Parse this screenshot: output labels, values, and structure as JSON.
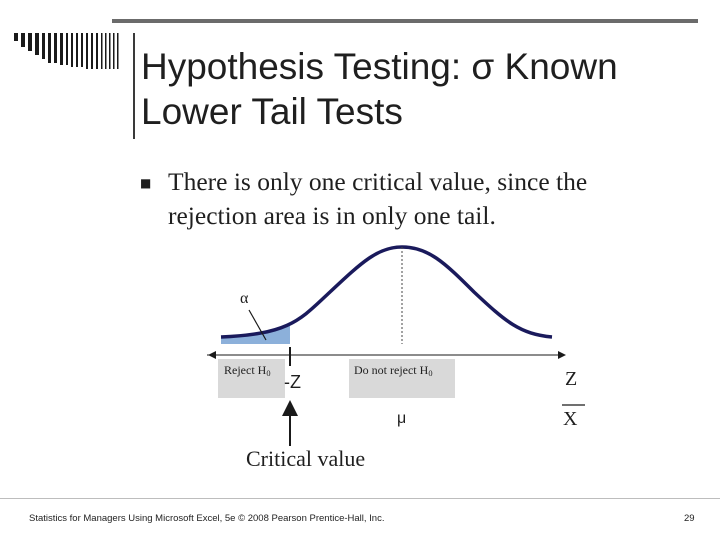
{
  "slide": {
    "title_line1": "Hypothesis Testing: σ Known",
    "title_line2": "Lower Tail Tests",
    "bullet_text": "There is only one critical value, since the rejection area is in only one tail.",
    "footer": "Statistics for Managers Using Microsoft Excel, 5e © 2008 Pearson Prentice-Hall, Inc.",
    "page_number": "29"
  },
  "figure": {
    "alpha_label": "α",
    "reject_label": "Reject H",
    "reject_sub": "0",
    "do_not_reject_label": "Do not reject H",
    "do_not_reject_sub": "0",
    "critical_z_label": "-Z",
    "mu_label": "μ",
    "z_axis_label": "Z",
    "x_axis_label": "X",
    "critical_value_label": "Critical value",
    "colors": {
      "curve": "#1a1a5c",
      "reject_fill": "#7fa7d6",
      "box": "#d9d9d9"
    }
  }
}
